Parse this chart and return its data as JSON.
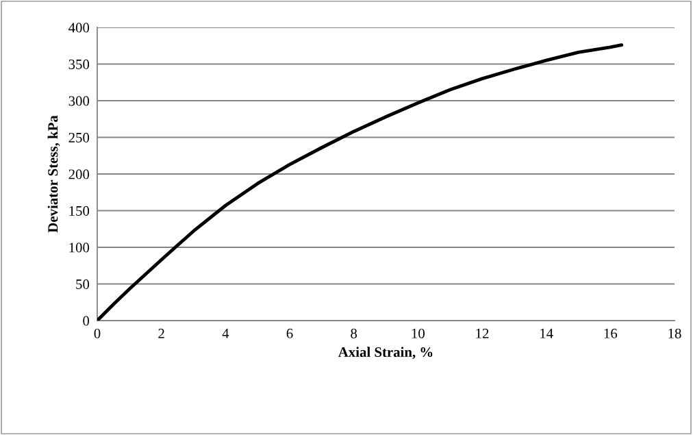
{
  "chart_data": {
    "type": "line",
    "xlabel": "Axial Strain, %",
    "ylabel": "Deviator Stess, kPa",
    "x": [
      0,
      0.5,
      1,
      2,
      3,
      4,
      5,
      6,
      7,
      8,
      9,
      10,
      11,
      12,
      13,
      14,
      15,
      16,
      16.35
    ],
    "series": [
      {
        "color": "#000000",
        "values": [
          0,
          22,
          43,
          83,
          122,
          157,
          187,
          213,
          236,
          258,
          278,
          297,
          315,
          330,
          343,
          355,
          366,
          373,
          376
        ]
      }
    ],
    "xlim": [
      0,
      18
    ],
    "xticks": [
      0,
      2,
      4,
      6,
      8,
      10,
      12,
      14,
      16,
      18
    ],
    "ylim": [
      0,
      400
    ],
    "yticks": [
      0,
      50,
      100,
      150,
      200,
      250,
      300,
      350,
      400
    ],
    "grid": "y",
    "marker": "none",
    "line_style": "solid"
  }
}
